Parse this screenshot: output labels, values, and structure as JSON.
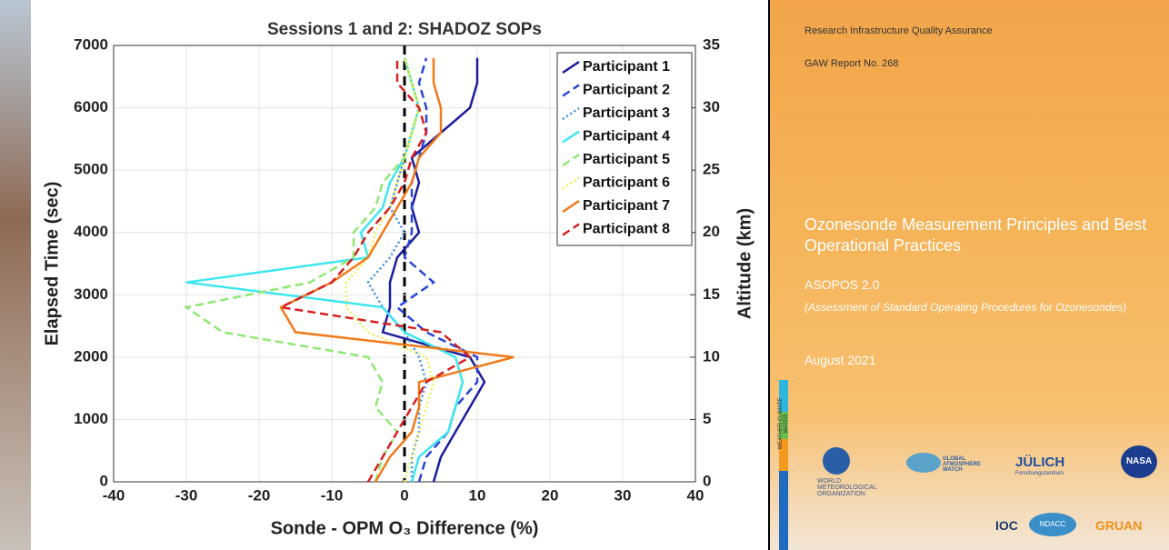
{
  "chart_data": {
    "type": "line",
    "title": "Sessions 1 and 2: SHADOZ SOPs",
    "x_label": "Sonde - OPM O₃ Difference (%)",
    "y_label": "Elapsed Time (sec)",
    "y2_label": "Altitude (km)",
    "y": [
      0,
      400,
      800,
      1200,
      1600,
      2000,
      2400,
      2800,
      3200,
      3600,
      4000,
      4400,
      4800,
      5200,
      5600,
      6000,
      6400,
      6800
    ],
    "xlim": [
      -40,
      40
    ],
    "xticks": [
      -40,
      -30,
      -20,
      -10,
      0,
      10,
      20,
      30,
      40
    ],
    "ylim": [
      0,
      7000
    ],
    "yticks": [
      0,
      1000,
      2000,
      3000,
      4000,
      5000,
      6000,
      7000
    ],
    "y2lim": [
      0,
      35
    ],
    "y2ticks": [
      0,
      5,
      10,
      15,
      20,
      25,
      30,
      35
    ],
    "grid": true,
    "legend": "upper right",
    "series": [
      {
        "name": "Participant 1",
        "color": "#1c1c9c",
        "style": "solid",
        "values": [
          4,
          5,
          7,
          9,
          11,
          9,
          -3,
          -2,
          -2,
          -1,
          2,
          1,
          2,
          1,
          5,
          9,
          10,
          10
        ]
      },
      {
        "name": "Participant 2",
        "color": "#2a46d6",
        "style": "dashed",
        "values": [
          2,
          3,
          6,
          7,
          10,
          10,
          3,
          -1,
          4,
          0,
          1,
          1,
          1,
          2,
          3,
          3,
          2,
          3
        ]
      },
      {
        "name": "Participant 3",
        "color": "#3a8fe0",
        "style": "dotted",
        "values": [
          1,
          1,
          2,
          2,
          3,
          2,
          0,
          -3,
          -5,
          -2,
          0,
          -2,
          -1,
          0,
          1,
          2,
          1,
          0
        ]
      },
      {
        "name": "Participant 4",
        "color": "#3ee6f0",
        "style": "solid",
        "values": [
          1,
          2,
          6,
          7,
          8,
          7,
          0,
          -3,
          -30,
          -5,
          -6,
          -3,
          -2,
          0,
          1,
          2,
          1,
          0
        ]
      },
      {
        "name": "Participant 5",
        "color": "#8ee872",
        "style": "dashed",
        "values": [
          -4,
          -3,
          -1,
          -4,
          -3,
          -5,
          -25,
          -30,
          -13,
          -7,
          -7,
          -4,
          -3,
          0,
          1,
          2,
          1,
          0
        ]
      },
      {
        "name": "Participant 6",
        "color": "#f2ee50",
        "style": "dotted",
        "values": [
          0,
          1,
          2,
          3,
          4,
          3,
          -5,
          -8,
          -8,
          -5,
          -4,
          -2,
          -1,
          0,
          1,
          2,
          1,
          0
        ]
      },
      {
        "name": "Participant 7",
        "color": "#f07a1a",
        "style": "solid",
        "values": [
          -4,
          -2,
          1,
          2,
          2,
          15,
          -15,
          -17,
          -10,
          -5,
          -3,
          -1,
          1,
          2,
          5,
          5,
          4,
          4
        ]
      },
      {
        "name": "Participant 8",
        "color": "#d42020",
        "style": "dashed",
        "values": [
          -5,
          -3,
          -1,
          1,
          3,
          9,
          5,
          -17,
          -10,
          -7,
          -5,
          -2,
          0,
          1,
          3,
          2,
          -1,
          -1
        ]
      }
    ]
  },
  "cover": {
    "series_name": "Research Infrastructure Quality Assurance",
    "report_no": "GAW Report No. 268",
    "title": "Ozonesonde Measurement Principles and Best Operational Practices",
    "subtitle": "ASOPOS 2.0",
    "description": "(Assessment of Standard Operating Procedures for Ozonesondes)",
    "date": "August 2021",
    "sidebar": "WEATHER CLIMATE WATER",
    "logos": {
      "wmo": "WORLD METEOROLOGICAL ORGANIZATION",
      "gaw": "GLOBAL ATMOSPHERE WATCH",
      "julich": "JÜLICH",
      "julich_sub": "Forschungszentrum",
      "nasa": "NASA",
      "ioc": "IOC",
      "ndacc": "NDACC",
      "gruan": "GRUAN"
    }
  }
}
